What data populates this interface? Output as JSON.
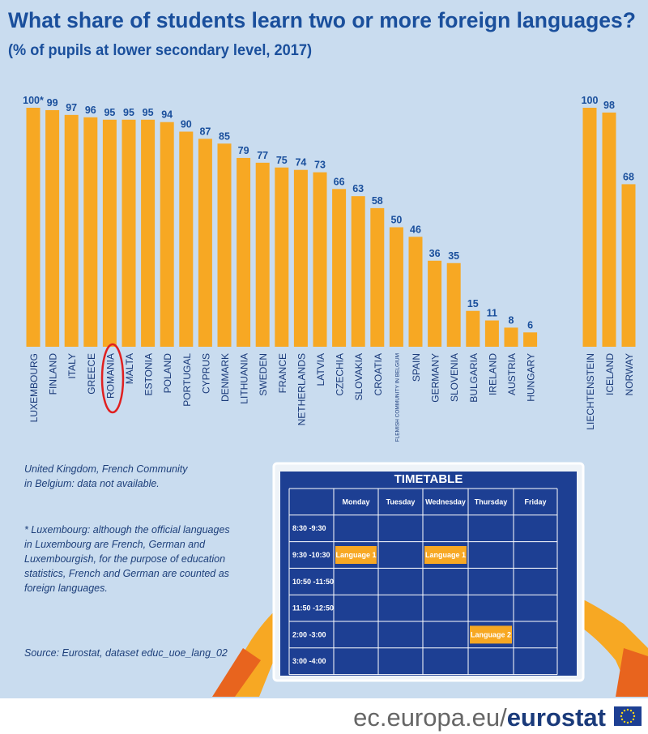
{
  "title": "What share of students learn two or more foreign languages?",
  "subtitle": "(% of pupils at lower secondary level, 2017)",
  "chart_data": [
    {
      "type": "bar",
      "color": "#f7a823",
      "categories": [
        "LUXEMBOURG",
        "FINLAND",
        "ITALY",
        "GREECE",
        "ROMANIA",
        "MALTA",
        "ESTONIA",
        "POLAND",
        "PORTUGAL",
        "CYPRUS",
        "DENMARK",
        "LITHUANIA",
        "SWEDEN",
        "FRANCE",
        "NETHERLANDS",
        "LATVIA",
        "CZECHIA",
        "SLOVAKIA",
        "CROATIA",
        "FLEMISH COMMUNITY IN BELGIUM",
        "SPAIN",
        "GERMANY",
        "SLOVENIA",
        "BULGARIA",
        "IRELAND",
        "AUSTRIA",
        "HUNGARY"
      ],
      "values": [
        100,
        99,
        97,
        96,
        95,
        95,
        95,
        94,
        90,
        87,
        85,
        79,
        77,
        75,
        74,
        73,
        66,
        63,
        58,
        50,
        46,
        36,
        35,
        15,
        11,
        8,
        6
      ],
      "value_labels": [
        "100*",
        "99",
        "97",
        "96",
        "95",
        "95",
        "95",
        "94",
        "90",
        "87",
        "85",
        "79",
        "77",
        "75",
        "74",
        "73",
        "66",
        "63",
        "58",
        "50",
        "46",
        "36",
        "35",
        "15",
        "11",
        "8",
        "6"
      ]
    },
    {
      "type": "bar",
      "color": "#f7a823",
      "categories": [
        "LIECHTENSTEIN",
        "ICELAND",
        "NORWAY"
      ],
      "values": [
        100,
        98,
        68
      ]
    }
  ],
  "notes": [
    "United Kingdom, French Community",
    "in Belgium: data not available.",
    "* Luxembourg: although the official languages",
    "in Luxembourg are French, German and",
    "Luxembourgish, for the purpose of education",
    "statistics, French and German are counted as",
    "foreign languages."
  ],
  "source": "Source: Eurostat, dataset educ_uoe_lang_02",
  "timetable": {
    "title": "TIMETABLE",
    "days": [
      "Monday",
      "Tuesday",
      "Wednesday",
      "Thursday",
      "Friday"
    ],
    "rows": [
      {
        "time": "8:30 -9:30",
        "cells": [
          null,
          null,
          null,
          null,
          null
        ]
      },
      {
        "time": "9:30 -10:30",
        "cells": [
          "Language 1",
          null,
          "Language 1",
          null,
          null
        ]
      },
      {
        "time": "10:50 -11:50",
        "cells": [
          null,
          null,
          null,
          null,
          null
        ]
      },
      {
        "time": "11:50 -12:50",
        "cells": [
          null,
          null,
          null,
          null,
          null
        ]
      },
      {
        "time": "2:00 -3:00",
        "cells": [
          null,
          null,
          null,
          "Language 2",
          null
        ]
      },
      {
        "time": "3:00 -4:00",
        "cells": [
          null,
          null,
          null,
          null,
          null
        ]
      }
    ]
  },
  "footer": {
    "site": "ec.europa.eu/",
    "brand": "eurostat"
  }
}
